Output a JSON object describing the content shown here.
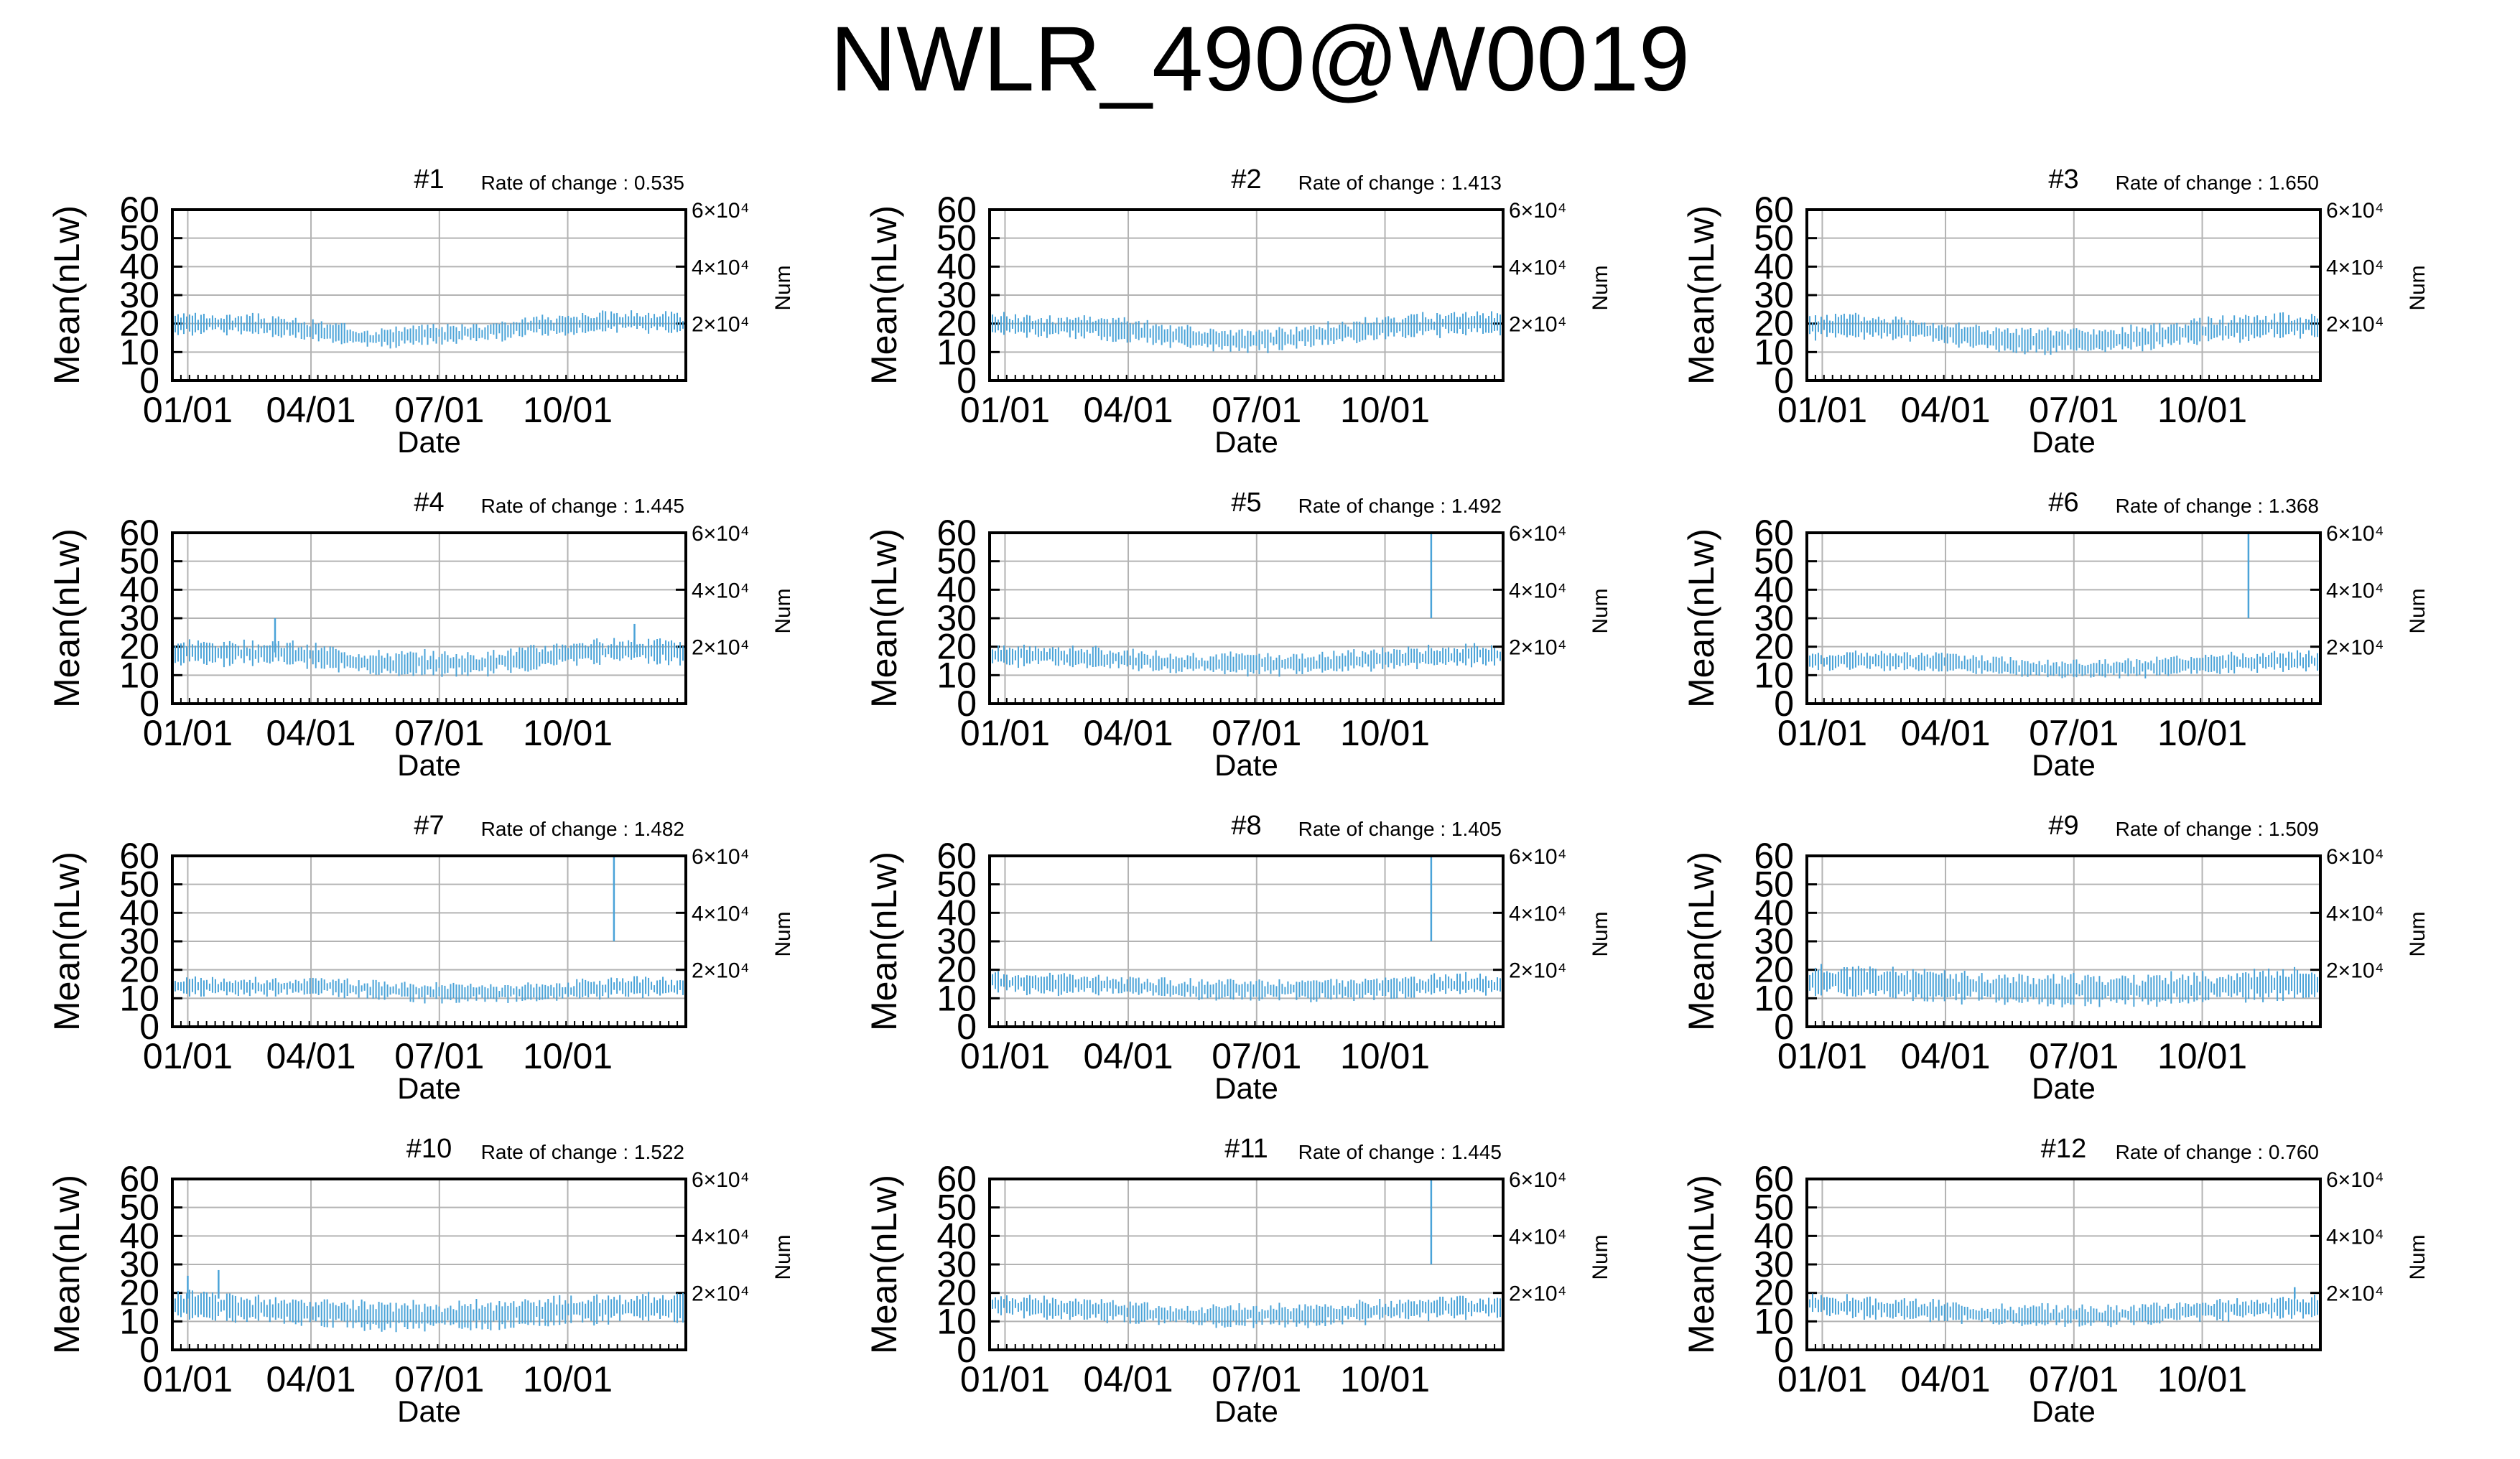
{
  "title": "NWLR_490@W0019",
  "colors": {
    "series": "#4aa3d8",
    "grid": "#b3b3b3",
    "axis": "#000000"
  },
  "chart_data": [
    {
      "type": "line",
      "panel": "#1",
      "rate_label": "Rate of change : 0.535",
      "xlabel": "Date",
      "ylabel": "Mean(nLw)",
      "y2label": "Num",
      "xticks": [
        "01/01",
        "04/01",
        "07/01",
        "10/01"
      ],
      "yticks": [
        "0",
        "10",
        "20",
        "30",
        "40",
        "50",
        "60"
      ],
      "y2ticks": [
        "2×10⁴",
        "4×10⁴",
        "6×10⁴"
      ],
      "ylim": [
        0,
        60
      ],
      "y2lim": [
        0,
        60000
      ],
      "grid": true,
      "series": [
        {
          "shape": [
            20,
            20,
            19,
            17,
            15,
            16,
            17,
            19,
            20,
            21,
            20
          ],
          "noise": 2.5,
          "spikes": []
        }
      ]
    },
    {
      "type": "line",
      "panel": "#2",
      "rate_label": "Rate of change : 1.413",
      "xlabel": "Date",
      "ylabel": "Mean(nLw)",
      "y2label": "Num",
      "xticks": [
        "01/01",
        "04/01",
        "07/01",
        "10/01"
      ],
      "yticks": [
        "0",
        "10",
        "20",
        "30",
        "40",
        "50",
        "60"
      ],
      "y2ticks": [
        "2×10⁴",
        "4×10⁴",
        "6×10⁴"
      ],
      "ylim": [
        0,
        60
      ],
      "y2lim": [
        0,
        60000
      ],
      "grid": true,
      "series": [
        {
          "shape": [
            20,
            19,
            19,
            17,
            15,
            14,
            15,
            17,
            19,
            20,
            20
          ],
          "noise": 2.8,
          "spikes": []
        }
      ]
    },
    {
      "type": "line",
      "panel": "#3",
      "rate_label": "Rate of change : 1.650",
      "xlabel": "Date",
      "ylabel": "Mean(nLw)",
      "y2label": "Num",
      "xticks": [
        "01/01",
        "04/01",
        "07/01",
        "10/01"
      ],
      "yticks": [
        "0",
        "10",
        "20",
        "30",
        "40",
        "50",
        "60"
      ],
      "y2ticks": [
        "2×10⁴",
        "4×10⁴",
        "6×10⁴"
      ],
      "ylim": [
        0,
        60
      ],
      "y2lim": [
        0,
        60000
      ],
      "grid": true,
      "series": [
        {
          "shape": [
            19,
            19,
            18,
            16,
            14,
            14,
            14,
            16,
            18,
            19,
            19
          ],
          "noise": 3.0,
          "spikes": []
        }
      ]
    },
    {
      "type": "line",
      "panel": "#4",
      "rate_label": "Rate of change : 1.445",
      "xlabel": "Date",
      "ylabel": "Mean(nLw)",
      "y2label": "Num",
      "xticks": [
        "01/01",
        "04/01",
        "07/01",
        "10/01"
      ],
      "yticks": [
        "0",
        "10",
        "20",
        "30",
        "40",
        "50",
        "60"
      ],
      "y2ticks": [
        "2×10⁴",
        "4×10⁴",
        "6×10⁴"
      ],
      "ylim": [
        0,
        60
      ],
      "y2lim": [
        0,
        60000
      ],
      "grid": true,
      "series": [
        {
          "shape": [
            18,
            18,
            18,
            16,
            14,
            14,
            14,
            16,
            18,
            19,
            18
          ],
          "noise": 3.0,
          "spikes": [
            [
              0.2,
              30
            ],
            [
              0.9,
              28
            ]
          ]
        }
      ]
    },
    {
      "type": "line",
      "panel": "#5",
      "rate_label": "Rate of change : 1.492",
      "xlabel": "Date",
      "ylabel": "Mean(nLw)",
      "y2label": "Num",
      "xticks": [
        "01/01",
        "04/01",
        "07/01",
        "10/01"
      ],
      "yticks": [
        "0",
        "10",
        "20",
        "30",
        "40",
        "50",
        "60"
      ],
      "y2ticks": [
        "2×10⁴",
        "4×10⁴",
        "6×10⁴"
      ],
      "ylim": [
        0,
        60
      ],
      "y2lim": [
        0,
        60000
      ],
      "grid": true,
      "series": [
        {
          "shape": [
            17,
            17,
            16,
            15,
            14,
            14,
            14,
            15,
            16,
            17,
            17
          ],
          "noise": 2.6,
          "spikes": [
            [
              0.86,
              60
            ]
          ]
        }
      ]
    },
    {
      "type": "line",
      "panel": "#6",
      "rate_label": "Rate of change : 1.368",
      "xlabel": "Date",
      "ylabel": "Mean(nLw)",
      "y2label": "Num",
      "xticks": [
        "01/01",
        "04/01",
        "07/01",
        "10/01"
      ],
      "yticks": [
        "0",
        "10",
        "20",
        "30",
        "40",
        "50",
        "60"
      ],
      "y2ticks": [
        "2×10⁴",
        "4×10⁴",
        "6×10⁴"
      ],
      "ylim": [
        0,
        60
      ],
      "y2lim": [
        0,
        60000
      ],
      "grid": true,
      "series": [
        {
          "shape": [
            15,
            15,
            15,
            14,
            13,
            12,
            12,
            13,
            14,
            15,
            15
          ],
          "noise": 2.2,
          "spikes": [
            [
              0.86,
              60
            ]
          ]
        }
      ]
    },
    {
      "type": "line",
      "panel": "#7",
      "rate_label": "Rate of change : 1.482",
      "xlabel": "Date",
      "ylabel": "Mean(nLw)",
      "y2label": "Num",
      "xticks": [
        "01/01",
        "04/01",
        "07/01",
        "10/01"
      ],
      "yticks": [
        "0",
        "10",
        "20",
        "30",
        "40",
        "50",
        "60"
      ],
      "y2ticks": [
        "2×10⁴",
        "4×10⁴",
        "6×10⁴"
      ],
      "ylim": [
        0,
        60
      ],
      "y2lim": [
        0,
        60000
      ],
      "grid": true,
      "series": [
        {
          "shape": [
            14,
            14,
            14,
            14,
            13,
            12,
            12,
            12,
            13,
            14,
            14
          ],
          "noise": 2.2,
          "spikes": [
            [
              0.86,
              60
            ]
          ]
        }
      ]
    },
    {
      "type": "line",
      "panel": "#8",
      "rate_label": "Rate of change : 1.405",
      "xlabel": "Date",
      "ylabel": "Mean(nLw)",
      "y2label": "Num",
      "xticks": [
        "01/01",
        "04/01",
        "07/01",
        "10/01"
      ],
      "yticks": [
        "0",
        "10",
        "20",
        "30",
        "40",
        "50",
        "60"
      ],
      "y2ticks": [
        "2×10⁴",
        "4×10⁴",
        "6×10⁴"
      ],
      "ylim": [
        0,
        60
      ],
      "y2lim": [
        0,
        60000
      ],
      "grid": true,
      "series": [
        {
          "shape": [
            16,
            15,
            15,
            14,
            13,
            13,
            13,
            13,
            14,
            15,
            15
          ],
          "noise": 2.5,
          "spikes": [
            [
              0.86,
              60
            ]
          ]
        }
      ]
    },
    {
      "type": "line",
      "panel": "#9",
      "rate_label": "Rate of change : 1.509",
      "xlabel": "Date",
      "ylabel": "Mean(nLw)",
      "y2label": "Num",
      "xticks": [
        "01/01",
        "04/01",
        "07/01",
        "10/01"
      ],
      "yticks": [
        "0",
        "10",
        "20",
        "30",
        "40",
        "50",
        "60"
      ],
      "y2ticks": [
        "2×10⁴",
        "4×10⁴",
        "6×10⁴"
      ],
      "ylim": [
        0,
        60
      ],
      "y2lim": [
        0,
        60000
      ],
      "grid": true,
      "series": [
        {
          "shape": [
            16,
            16,
            15,
            14,
            13,
            13,
            13,
            13,
            14,
            15,
            15
          ],
          "noise": 3.8,
          "spikes": []
        }
      ]
    },
    {
      "type": "line",
      "panel": "#10",
      "rate_label": "Rate of change : 1.522",
      "xlabel": "Date",
      "ylabel": "Mean(nLw)",
      "y2label": "Num",
      "xticks": [
        "01/01",
        "04/01",
        "07/01",
        "10/01"
      ],
      "yticks": [
        "0",
        "10",
        "20",
        "30",
        "40",
        "50",
        "60"
      ],
      "y2ticks": [
        "2×10⁴",
        "4×10⁴",
        "6×10⁴"
      ],
      "ylim": [
        0,
        60
      ],
      "y2lim": [
        0,
        60000
      ],
      "grid": true,
      "series": [
        {
          "shape": [
            16,
            15,
            14,
            13,
            12,
            12,
            12,
            13,
            14,
            15,
            15
          ],
          "noise": 3.5,
          "spikes": [
            [
              0.03,
              26
            ],
            [
              0.09,
              28
            ]
          ]
        }
      ]
    },
    {
      "type": "line",
      "panel": "#11",
      "rate_label": "Rate of change : 1.445",
      "xlabel": "Date",
      "ylabel": "Mean(nLw)",
      "y2label": "Num",
      "xticks": [
        "01/01",
        "04/01",
        "07/01",
        "10/01"
      ],
      "yticks": [
        "0",
        "10",
        "20",
        "30",
        "40",
        "50",
        "60"
      ],
      "y2ticks": [
        "2×10⁴",
        "4×10⁴",
        "6×10⁴"
      ],
      "ylim": [
        0,
        60
      ],
      "y2lim": [
        0,
        60000
      ],
      "grid": true,
      "series": [
        {
          "shape": [
            16,
            15,
            14,
            13,
            12,
            12,
            12,
            13,
            14,
            15,
            15
          ],
          "noise": 2.6,
          "spikes": [
            [
              0.86,
              60
            ]
          ]
        }
      ]
    },
    {
      "type": "line",
      "panel": "#12",
      "rate_label": "Rate of change : 0.760",
      "xlabel": "Date",
      "ylabel": "Mean(nLw)",
      "y2label": "Num",
      "xticks": [
        "01/01",
        "04/01",
        "07/01",
        "10/01"
      ],
      "yticks": [
        "0",
        "10",
        "20",
        "30",
        "40",
        "50",
        "60"
      ],
      "y2ticks": [
        "2×10⁴",
        "4×10⁴",
        "6×10⁴"
      ],
      "ylim": [
        0,
        60
      ],
      "y2lim": [
        0,
        60000
      ],
      "grid": true,
      "series": [
        {
          "shape": [
            16,
            15,
            14,
            13,
            12,
            12,
            12,
            13,
            14,
            15,
            15
          ],
          "noise": 2.5,
          "spikes": [
            [
              0.95,
              22
            ]
          ]
        }
      ]
    }
  ]
}
